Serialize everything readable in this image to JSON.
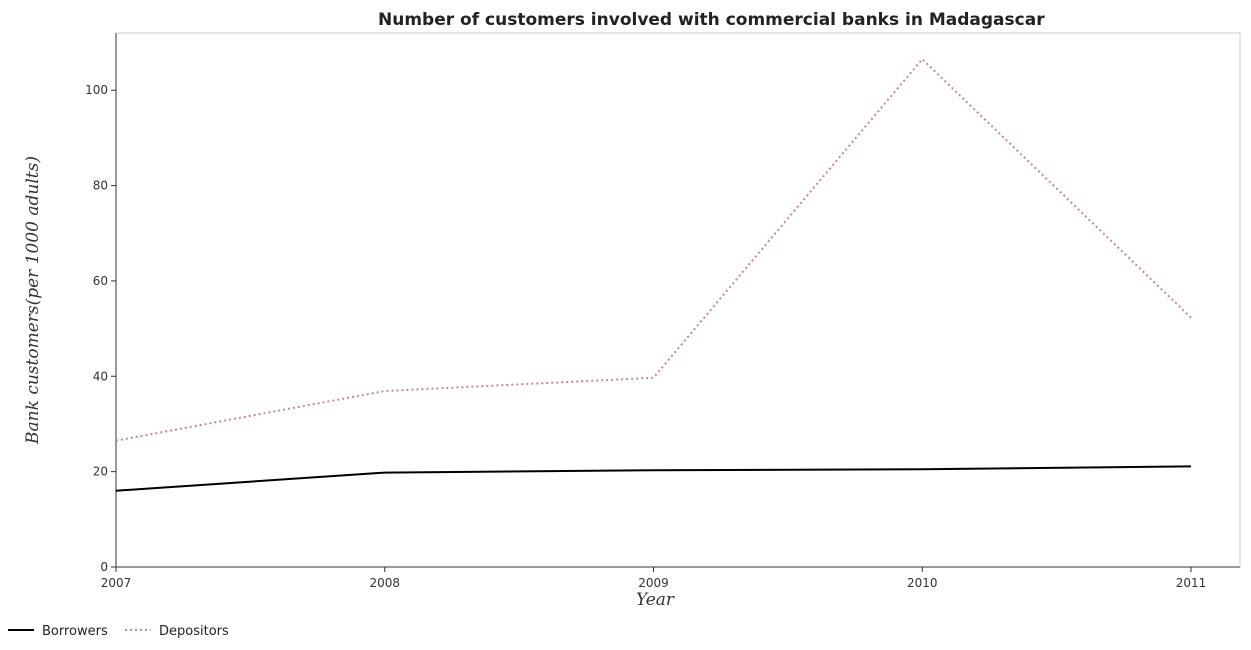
{
  "chart_data": {
    "type": "line",
    "title": "Number of customers involved with commercial banks in Madagascar",
    "xlabel": "Year",
    "ylabel": "Bank customers(per 1000 adults)",
    "categories": [
      "2007",
      "2008",
      "2009",
      "2010",
      "2011"
    ],
    "ylim": [
      0,
      112
    ],
    "yticks": [
      0,
      20,
      40,
      60,
      80,
      100
    ],
    "grid": false,
    "legend_position": "bottom-left",
    "series": [
      {
        "name": "Borrowers",
        "values": [
          16.0,
          19.8,
          20.3,
          20.5,
          21.1
        ],
        "color": "#000000",
        "dash": "solid"
      },
      {
        "name": "Depositors",
        "values": [
          26.5,
          36.9,
          39.7,
          106.5,
          52.3
        ],
        "color": "#c58a8a",
        "dash": "dotted"
      }
    ]
  }
}
